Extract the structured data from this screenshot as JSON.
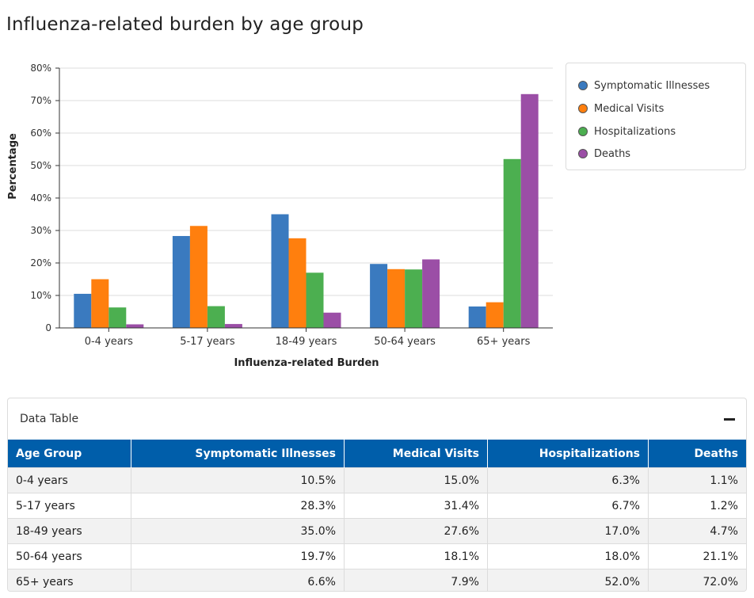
{
  "title": "Influenza-related burden by age group",
  "legend": [
    {
      "label": "Symptomatic Illnesses",
      "color": "#3a7abf"
    },
    {
      "label": "Medical Visits",
      "color": "#ff7f0e"
    },
    {
      "label": "Hospitalizations",
      "color": "#4caf50"
    },
    {
      "label": "Deaths",
      "color": "#9b4ea6"
    }
  ],
  "table": {
    "toggle_label": "Data Table",
    "columns": [
      "Age Group",
      "Symptomatic Illnesses",
      "Medical Visits",
      "Hospitalizations",
      "Deaths"
    ],
    "rows": [
      [
        "0-4 years",
        "10.5%",
        "15.0%",
        "6.3%",
        "1.1%"
      ],
      [
        "5-17 years",
        "28.3%",
        "31.4%",
        "6.7%",
        "1.2%"
      ],
      [
        "18-49 years",
        "35.0%",
        "27.6%",
        "17.0%",
        "4.7%"
      ],
      [
        "50-64 years",
        "19.7%",
        "18.1%",
        "18.0%",
        "21.1%"
      ],
      [
        "65+ years",
        "6.6%",
        "7.9%",
        "52.0%",
        "72.0%"
      ]
    ]
  },
  "chart_data": {
    "type": "bar",
    "categories": [
      "0-4 years",
      "5-17 years",
      "18-49 years",
      "50-64 years",
      "65+ years"
    ],
    "series": [
      {
        "name": "Symptomatic Illnesses",
        "color": "#3a7abf",
        "values": [
          10.5,
          28.3,
          35.0,
          19.7,
          6.6
        ]
      },
      {
        "name": "Medical Visits",
        "color": "#ff7f0e",
        "values": [
          15.0,
          31.4,
          27.6,
          18.1,
          7.9
        ]
      },
      {
        "name": "Hospitalizations",
        "color": "#4caf50",
        "values": [
          6.3,
          6.7,
          17.0,
          18.0,
          52.0
        ]
      },
      {
        "name": "Deaths",
        "color": "#9b4ea6",
        "values": [
          1.1,
          1.2,
          4.7,
          21.1,
          72.0
        ]
      }
    ],
    "xlabel": "Influenza-related Burden",
    "ylabel": "Percentage",
    "ylim": [
      0,
      80
    ],
    "yticks": [
      "0",
      "10%",
      "20%",
      "30%",
      "40%",
      "50%",
      "60%",
      "70%",
      "80%"
    ],
    "grid": true,
    "legend_position": "right"
  }
}
